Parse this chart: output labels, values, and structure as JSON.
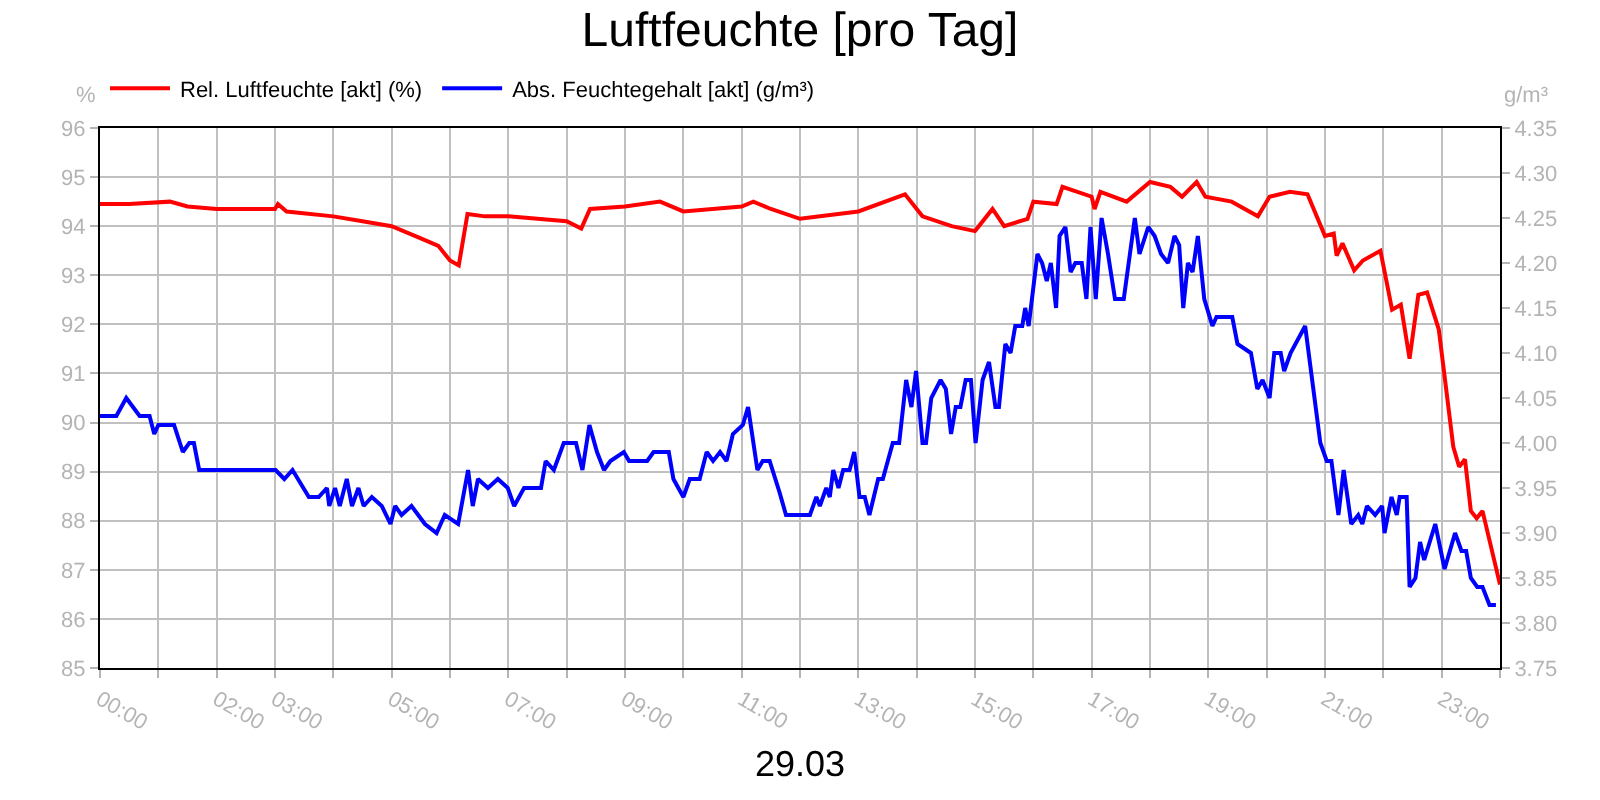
{
  "chart_data": {
    "type": "line",
    "title": "Luftfeuchte [pro Tag]",
    "xlabel": "29.03",
    "ylabel": "%",
    "y2label": "g/m³",
    "legend": "top left",
    "grid": true,
    "marker": "none",
    "line_style": "solid",
    "xlim": [
      0,
      24
    ],
    "xticks": [
      {
        "value": 0,
        "label": "00:00"
      },
      {
        "value": 1,
        "label": null
      },
      {
        "value": 2,
        "label": "02:00"
      },
      {
        "value": 3,
        "label": "03:00"
      },
      {
        "value": 4,
        "label": null
      },
      {
        "value": 5,
        "label": "05:00"
      },
      {
        "value": 6,
        "label": null
      },
      {
        "value": 7,
        "label": "07:00"
      },
      {
        "value": 8,
        "label": null
      },
      {
        "value": 9,
        "label": "09:00"
      },
      {
        "value": 10,
        "label": null
      },
      {
        "value": 11,
        "label": "11:00"
      },
      {
        "value": 12,
        "label": null
      },
      {
        "value": 13,
        "label": "13:00"
      },
      {
        "value": 14,
        "label": null
      },
      {
        "value": 15,
        "label": "15:00"
      },
      {
        "value": 16,
        "label": null
      },
      {
        "value": 17,
        "label": "17:00"
      },
      {
        "value": 18,
        "label": null
      },
      {
        "value": 19,
        "label": "19:00"
      },
      {
        "value": 20,
        "label": null
      },
      {
        "value": 21,
        "label": "21:00"
      },
      {
        "value": 22,
        "label": null
      },
      {
        "value": 23,
        "label": "23:00"
      },
      {
        "value": 24,
        "label": null
      }
    ],
    "ylim": [
      85,
      96
    ],
    "yticks": [
      85,
      86,
      87,
      88,
      89,
      90,
      91,
      92,
      93,
      94,
      95,
      96
    ],
    "y2lim": [
      3.75,
      4.35
    ],
    "y2ticks": [
      {
        "value": 3.75,
        "label": "3.75"
      },
      {
        "value": 3.8,
        "label": "3.80"
      },
      {
        "value": 3.85,
        "label": "3.85"
      },
      {
        "value": 3.9,
        "label": "3.90"
      },
      {
        "value": 3.95,
        "label": "3.95"
      },
      {
        "value": 4.0,
        "label": "4.00"
      },
      {
        "value": 4.05,
        "label": "4.05"
      },
      {
        "value": 4.1,
        "label": "4.10"
      },
      {
        "value": 4.15,
        "label": "4.15"
      },
      {
        "value": 4.2,
        "label": "4.20"
      },
      {
        "value": 4.25,
        "label": "4.25"
      },
      {
        "value": 4.3,
        "label": "4.30"
      },
      {
        "value": 4.35,
        "label": "4.35"
      }
    ],
    "series": [
      {
        "name": "Rel. Luftfeuchte [akt] (%)",
        "color": "#ff0000",
        "x": [
          0,
          0.5,
          1.2,
          1.5,
          2,
          3,
          3.05,
          3.2,
          4,
          4.5,
          5,
          5.5,
          5.8,
          6,
          6.15,
          6.3,
          6.6,
          7,
          7.5,
          8,
          8.25,
          8.4,
          9,
          9.6,
          10,
          10.5,
          11,
          11.2,
          11.5,
          12,
          13,
          13.8,
          14.1,
          14.6,
          15,
          15.3,
          15.5,
          15.9,
          16,
          16.4,
          16.5,
          17,
          17.05,
          17.15,
          17.6,
          18,
          18.35,
          18.55,
          18.8,
          18.95,
          19.4,
          19.85,
          20.05,
          20.4,
          20.7,
          21,
          21.15,
          21.2,
          21.3,
          21.5,
          21.65,
          21.95,
          22,
          22.15,
          22.3,
          22.45,
          22.6,
          22.75,
          22.95,
          23.2,
          23.3,
          23.4,
          23.5,
          23.6,
          23.7,
          24
        ],
        "values": [
          94.45,
          94.45,
          94.5,
          94.4,
          94.35,
          94.35,
          94.45,
          94.3,
          94.2,
          94.1,
          94.0,
          93.75,
          93.6,
          93.3,
          93.2,
          94.25,
          94.2,
          94.2,
          94.15,
          94.1,
          93.95,
          94.35,
          94.4,
          94.5,
          94.3,
          94.35,
          94.4,
          94.5,
          94.35,
          94.15,
          94.3,
          94.65,
          94.2,
          94.0,
          93.9,
          94.35,
          94.0,
          94.15,
          94.5,
          94.45,
          94.8,
          94.6,
          94.35,
          94.7,
          94.5,
          94.9,
          94.8,
          94.6,
          94.9,
          94.6,
          94.5,
          94.2,
          94.6,
          94.7,
          94.65,
          93.8,
          93.85,
          93.4,
          93.65,
          93.1,
          93.3,
          93.5,
          93.2,
          92.3,
          92.4,
          91.3,
          92.6,
          92.65,
          91.9,
          89.5,
          89.1,
          89.25,
          88.2,
          88.05,
          88.2,
          86.7
        ]
      },
      {
        "name": "Abs. Feuchtegehalt [akt] (g/m³)",
        "color": "#0000ff",
        "axis": "y2",
        "x": [
          0,
          0.28,
          0.45,
          0.68,
          0.85,
          0.93,
          1,
          1.27,
          1.42,
          1.53,
          1.61,
          1.7,
          3.01,
          3.16,
          3.3,
          3.58,
          3.75,
          3.89,
          3.93,
          4.03,
          4.11,
          4.23,
          4.32,
          4.43,
          4.52,
          4.66,
          4.83,
          4.98,
          5.06,
          5.17,
          5.34,
          5.57,
          5.77,
          5.91,
          6.14,
          6.31,
          6.39,
          6.48,
          6.65,
          6.82,
          6.99,
          7.1,
          7.27,
          7.56,
          7.64,
          7.78,
          7.95,
          8.16,
          8.27,
          8.39,
          8.52,
          8.64,
          8.75,
          8.98,
          9.07,
          9.38,
          9.49,
          9.75,
          9.83,
          10,
          10.11,
          10.28,
          10.4,
          10.51,
          10.63,
          10.74,
          10.85,
          11.02,
          11.11,
          11.27,
          11.36,
          11.48,
          11.65,
          11.76,
          11.93,
          12.17,
          12.28,
          12.34,
          12.45,
          12.51,
          12.57,
          12.66,
          12.74,
          12.85,
          12.93,
          13.02,
          13.11,
          13.19,
          13.34,
          13.42,
          13.59,
          13.7,
          13.82,
          13.91,
          13.99,
          14.1,
          14.16,
          14.25,
          14.41,
          14.5,
          14.59,
          14.67,
          14.75,
          14.84,
          14.93,
          15.01,
          15.13,
          15.24,
          15.35,
          15.41,
          15.52,
          15.61,
          15.69,
          15.81,
          15.86,
          15.92,
          16.07,
          16.15,
          16.23,
          16.3,
          16.39,
          16.45,
          16.55,
          16.64,
          16.72,
          16.83,
          16.91,
          16.98,
          17.07,
          17.17,
          17.28,
          17.4,
          17.55,
          17.74,
          17.82,
          17.97,
          18.08,
          18.19,
          18.31,
          18.42,
          18.5,
          18.57,
          18.65,
          18.73,
          18.82,
          18.93,
          19.07,
          19.14,
          19.27,
          19.41,
          19.5,
          19.73,
          19.84,
          19.93,
          20.05,
          20.13,
          20.24,
          20.3,
          20.41,
          20.66,
          20.92,
          21.03,
          21.11,
          21.23,
          21.32,
          21.45,
          21.57,
          21.64,
          21.72,
          21.86,
          21.98,
          22.02,
          22.14,
          22.23,
          22.28,
          22.4,
          22.45,
          22.55,
          22.63,
          22.7,
          22.89,
          23.05,
          23.23,
          23.34,
          23.42,
          23.5,
          23.61,
          23.7,
          23.82,
          23.93
        ],
        "values": [
          4.03,
          4.03,
          4.05,
          4.03,
          4.03,
          4.01,
          4.02,
          4.02,
          3.99,
          4.0,
          4.0,
          3.97,
          3.97,
          3.96,
          3.97,
          3.94,
          3.94,
          3.95,
          3.93,
          3.95,
          3.93,
          3.96,
          3.93,
          3.95,
          3.93,
          3.94,
          3.93,
          3.91,
          3.93,
          3.92,
          3.93,
          3.91,
          3.9,
          3.92,
          3.91,
          3.97,
          3.93,
          3.96,
          3.95,
          3.96,
          3.95,
          3.93,
          3.95,
          3.95,
          3.98,
          3.97,
          4.0,
          4.0,
          3.97,
          4.02,
          3.99,
          3.97,
          3.98,
          3.99,
          3.98,
          3.98,
          3.99,
          3.99,
          3.96,
          3.94,
          3.96,
          3.96,
          3.99,
          3.98,
          3.99,
          3.98,
          4.01,
          4.02,
          4.04,
          3.97,
          3.98,
          3.98,
          3.945,
          3.92,
          3.92,
          3.92,
          3.94,
          3.93,
          3.95,
          3.94,
          3.97,
          3.95,
          3.97,
          3.97,
          3.99,
          3.94,
          3.94,
          3.92,
          3.96,
          3.96,
          4.0,
          4.0,
          4.07,
          4.04,
          4.08,
          4.0,
          4.0,
          4.05,
          4.07,
          4.06,
          4.01,
          4.04,
          4.04,
          4.07,
          4.07,
          4.0,
          4.07,
          4.09,
          4.04,
          4.04,
          4.11,
          4.1,
          4.13,
          4.13,
          4.15,
          4.13,
          4.21,
          4.2,
          4.18,
          4.2,
          4.15,
          4.23,
          4.24,
          4.19,
          4.2,
          4.2,
          4.16,
          4.24,
          4.16,
          4.25,
          4.21,
          4.16,
          4.16,
          4.25,
          4.21,
          4.24,
          4.23,
          4.21,
          4.2,
          4.23,
          4.22,
          4.15,
          4.2,
          4.19,
          4.23,
          4.16,
          4.13,
          4.14,
          4.14,
          4.14,
          4.11,
          4.1,
          4.06,
          4.07,
          4.05,
          4.1,
          4.1,
          4.08,
          4.1,
          4.13,
          4.0,
          3.98,
          3.98,
          3.92,
          3.97,
          3.91,
          3.92,
          3.91,
          3.93,
          3.92,
          3.93,
          3.9,
          3.94,
          3.92,
          3.94,
          3.94,
          3.84,
          3.85,
          3.89,
          3.87,
          3.91,
          3.86,
          3.9,
          3.88,
          3.88,
          3.85,
          3.84,
          3.84,
          3.82,
          3.82
        ]
      }
    ]
  }
}
